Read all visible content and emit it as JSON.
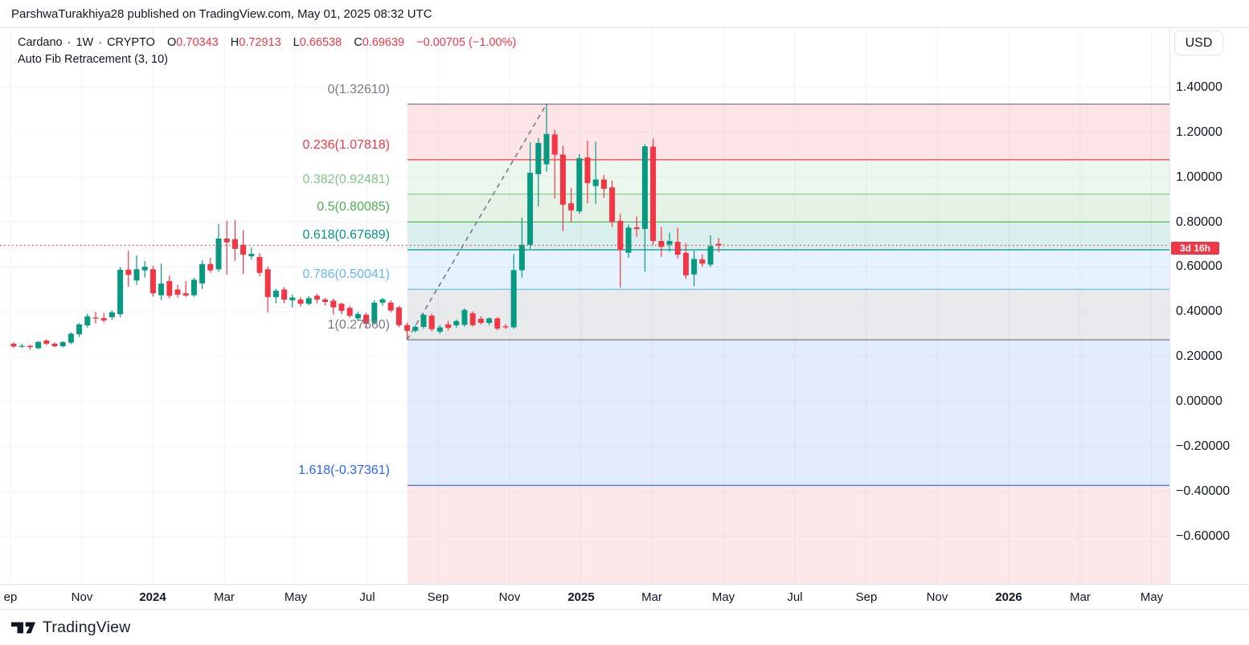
{
  "header": {
    "attribution": "ParshwaTurakhiya28 published on TradingView.com, May 01, 2025 08:32 UTC"
  },
  "legend": {
    "symbol": "Cardano",
    "separator": "·",
    "interval": "1W",
    "exchange": "CRYPTO",
    "ohlc": {
      "o_label": "O",
      "o": "0.70343",
      "h_label": "H",
      "h": "0.72913",
      "l_label": "L",
      "l": "0.66538",
      "c_label": "C",
      "c": "0.69639",
      "change": "−0.00705 (−1.00%)"
    },
    "indicator": "Auto Fib Retracement (3, 10)"
  },
  "price_axis": {
    "currency": "USD",
    "countdown": "3d 16h"
  },
  "footer": {
    "brand": "TradingView"
  },
  "colors": {
    "bull": "#089981",
    "bear": "#f23645",
    "grid": "#f0f3fa",
    "border": "#e0e3eb",
    "text": "#131722",
    "current_price": "#f23645",
    "countdown_bg": "#f23645",
    "trend_line": "#787b86"
  },
  "chart_data": {
    "type": "candlestick",
    "symbol": "Cardano",
    "exchange": "CRYPTO",
    "interval": "1W",
    "currency": "USD",
    "last_bar": {
      "open": 0.70343,
      "high": 0.72913,
      "low": 0.66538,
      "close": 0.69639,
      "change": -0.00705,
      "change_pct": -1.0
    },
    "current_price": 0.69639,
    "ylim": [
      -0.72,
      1.54
    ],
    "grid": true,
    "y_ticks": [
      {
        "value": 1.4,
        "text": "1.40000"
      },
      {
        "value": 1.2,
        "text": "1.20000"
      },
      {
        "value": 1.0,
        "text": "1.00000"
      },
      {
        "value": 0.8,
        "text": "0.80000"
      },
      {
        "value": 0.6,
        "text": "0.60000"
      },
      {
        "value": 0.4,
        "text": "0.40000"
      },
      {
        "value": 0.2,
        "text": "0.20000"
      },
      {
        "value": 0.0,
        "text": "0.00000"
      },
      {
        "value": -0.2,
        "text": "−0.20000"
      },
      {
        "value": -0.4,
        "text": "−0.40000"
      },
      {
        "value": -0.6,
        "text": "−0.60000"
      }
    ],
    "x_tick_labels": [
      {
        "text": "ep",
        "bold": false
      },
      {
        "text": "Nov",
        "bold": false
      },
      {
        "text": "2024",
        "bold": true
      },
      {
        "text": "Mar",
        "bold": false
      },
      {
        "text": "May",
        "bold": false
      },
      {
        "text": "Jul",
        "bold": false
      },
      {
        "text": "Sep",
        "bold": false
      },
      {
        "text": "Nov",
        "bold": false
      },
      {
        "text": "2025",
        "bold": true
      },
      {
        "text": "Mar",
        "bold": false
      },
      {
        "text": "May",
        "bold": false
      },
      {
        "text": "Jul",
        "bold": false
      },
      {
        "text": "Sep",
        "bold": false
      },
      {
        "text": "Nov",
        "bold": false
      },
      {
        "text": "2026",
        "bold": true
      },
      {
        "text": "Mar",
        "bold": false
      },
      {
        "text": "May",
        "bold": false
      }
    ],
    "candles": [
      [
        0.258,
        0.264,
        0.24,
        0.246
      ],
      [
        0.246,
        0.258,
        0.238,
        0.249
      ],
      [
        0.249,
        0.253,
        0.232,
        0.243
      ],
      [
        0.238,
        0.27,
        0.234,
        0.266
      ],
      [
        0.272,
        0.278,
        0.252,
        0.258
      ],
      [
        0.258,
        0.264,
        0.242,
        0.247
      ],
      [
        0.247,
        0.27,
        0.241,
        0.265
      ],
      [
        0.263,
        0.308,
        0.257,
        0.303
      ],
      [
        0.3,
        0.35,
        0.288,
        0.344
      ],
      [
        0.34,
        0.392,
        0.33,
        0.38
      ],
      [
        0.375,
        0.4,
        0.348,
        0.37
      ],
      [
        0.372,
        0.396,
        0.352,
        0.362
      ],
      [
        0.376,
        0.406,
        0.364,
        0.398
      ],
      [
        0.39,
        0.6,
        0.376,
        0.588
      ],
      [
        0.588,
        0.673,
        0.512,
        0.565
      ],
      [
        0.54,
        0.652,
        0.52,
        0.59
      ],
      [
        0.585,
        0.627,
        0.553,
        0.601
      ],
      [
        0.59,
        0.606,
        0.468,
        0.483
      ],
      [
        0.474,
        0.616,
        0.452,
        0.526
      ],
      [
        0.537,
        0.561,
        0.461,
        0.471
      ],
      [
        0.5,
        0.521,
        0.464,
        0.477
      ],
      [
        0.483,
        0.537,
        0.466,
        0.473
      ],
      [
        0.474,
        0.552,
        0.467,
        0.543
      ],
      [
        0.527,
        0.63,
        0.502,
        0.613
      ],
      [
        0.613,
        0.641,
        0.574,
        0.585
      ],
      [
        0.59,
        0.792,
        0.578,
        0.727
      ],
      [
        0.727,
        0.807,
        0.566,
        0.71
      ],
      [
        0.724,
        0.81,
        0.628,
        0.681
      ],
      [
        0.699,
        0.764,
        0.57,
        0.655
      ],
      [
        0.648,
        0.687,
        0.633,
        0.659
      ],
      [
        0.645,
        0.662,
        0.558,
        0.574
      ],
      [
        0.59,
        0.601,
        0.398,
        0.466
      ],
      [
        0.466,
        0.503,
        0.438,
        0.494
      ],
      [
        0.5,
        0.511,
        0.438,
        0.455
      ],
      [
        0.452,
        0.477,
        0.419,
        0.464
      ],
      [
        0.455,
        0.466,
        0.424,
        0.436
      ],
      [
        0.436,
        0.471,
        0.429,
        0.461
      ],
      [
        0.472,
        0.481,
        0.438,
        0.455
      ],
      [
        0.455,
        0.463,
        0.428,
        0.444
      ],
      [
        0.45,
        0.459,
        0.388,
        0.42
      ],
      [
        0.436,
        0.441,
        0.389,
        0.405
      ],
      [
        0.418,
        0.426,
        0.374,
        0.383
      ],
      [
        0.371,
        0.401,
        0.358,
        0.391
      ],
      [
        0.387,
        0.396,
        0.328,
        0.347
      ],
      [
        0.351,
        0.452,
        0.344,
        0.441
      ],
      [
        0.441,
        0.463,
        0.428,
        0.456
      ],
      [
        0.441,
        0.452,
        0.398,
        0.406
      ],
      [
        0.42,
        0.426,
        0.331,
        0.341
      ],
      [
        0.341,
        0.352,
        0.276,
        0.316
      ],
      [
        0.316,
        0.341,
        0.308,
        0.333
      ],
      [
        0.333,
        0.391,
        0.324,
        0.387
      ],
      [
        0.383,
        0.392,
        0.314,
        0.323
      ],
      [
        0.312,
        0.341,
        0.302,
        0.331
      ],
      [
        0.344,
        0.361,
        0.318,
        0.329
      ],
      [
        0.34,
        0.366,
        0.329,
        0.359
      ],
      [
        0.342,
        0.416,
        0.334,
        0.409
      ],
      [
        0.394,
        0.402,
        0.334,
        0.341
      ],
      [
        0.369,
        0.381,
        0.344,
        0.351
      ],
      [
        0.351,
        0.376,
        0.341,
        0.371
      ],
      [
        0.371,
        0.377,
        0.319,
        0.326
      ],
      [
        0.336,
        0.346,
        0.324,
        0.332
      ],
      [
        0.331,
        0.657,
        0.324,
        0.586
      ],
      [
        0.586,
        0.82,
        0.553,
        0.699
      ],
      [
        0.699,
        1.157,
        0.68,
        1.02
      ],
      [
        1.014,
        1.176,
        0.87,
        1.153
      ],
      [
        1.058,
        1.326,
        1.025,
        1.193
      ],
      [
        1.191,
        1.212,
        0.906,
        1.101
      ],
      [
        1.101,
        1.141,
        0.76,
        0.878
      ],
      [
        0.884,
        0.952,
        0.798,
        0.853
      ],
      [
        0.848,
        1.104,
        0.836,
        1.085
      ],
      [
        1.088,
        1.163,
        0.884,
        0.974
      ],
      [
        0.961,
        1.159,
        0.882,
        0.99
      ],
      [
        0.99,
        1.01,
        0.908,
        0.949
      ],
      [
        0.955,
        0.986,
        0.778,
        0.801
      ],
      [
        0.806,
        0.838,
        0.508,
        0.675
      ],
      [
        0.664,
        0.789,
        0.641,
        0.776
      ],
      [
        0.777,
        0.826,
        0.734,
        0.769
      ],
      [
        0.77,
        1.148,
        0.58,
        1.138
      ],
      [
        1.136,
        1.172,
        0.698,
        0.716
      ],
      [
        0.716,
        0.779,
        0.645,
        0.69
      ],
      [
        0.7,
        0.753,
        0.669,
        0.716
      ],
      [
        0.712,
        0.776,
        0.637,
        0.655
      ],
      [
        0.663,
        0.706,
        0.547,
        0.563
      ],
      [
        0.567,
        0.672,
        0.515,
        0.636
      ],
      [
        0.634,
        0.656,
        0.601,
        0.615
      ],
      [
        0.611,
        0.742,
        0.601,
        0.693
      ],
      [
        0.70343,
        0.72913,
        0.66538,
        0.69639
      ]
    ],
    "fib": {
      "name": "Auto Fib Retracement",
      "params": [
        3,
        10
      ],
      "trend_from": {
        "index": 48,
        "price": 0.2756
      },
      "trend_to": {
        "index": 65,
        "price": 1.3261
      },
      "levels": [
        {
          "level": "0",
          "price": 1.3261,
          "label": "0(1.32610)",
          "color": "#787b86",
          "band_below": "rgba(242,54,69,0.13)"
        },
        {
          "level": "0.236",
          "price": 1.07818,
          "label": "0.236(1.07818)",
          "color": "#f23645",
          "band_below": "rgba(129,199,132,0.15)"
        },
        {
          "level": "0.382",
          "price": 0.92481,
          "label": "0.382(0.92481)",
          "color": "#81c784",
          "band_below": "rgba(76,175,80,0.15)"
        },
        {
          "level": "0.5",
          "price": 0.80085,
          "label": "0.5(0.80085)",
          "color": "#4caf50",
          "band_below": "rgba(0,150,136,0.15)"
        },
        {
          "level": "0.618",
          "price": 0.67689,
          "label": "0.618(0.67689)",
          "color": "#009688",
          "band_below": "rgba(100,181,246,0.16)"
        },
        {
          "level": "0.786",
          "price": 0.50041,
          "label": "0.786(0.50041)",
          "color": "#64b5f6",
          "band_below": "rgba(120,123,134,0.16)"
        },
        {
          "level": "1",
          "price": 0.2756,
          "label": "1(0.27560)",
          "color": "#787b86",
          "band_below": "rgba(41,98,255,0.13)"
        },
        {
          "level": "1.618",
          "price": -0.37361,
          "label": "1.618(-0.37361)",
          "color": "#2962ff",
          "band_below": "rgba(242,54,69,0.12)"
        }
      ]
    }
  }
}
